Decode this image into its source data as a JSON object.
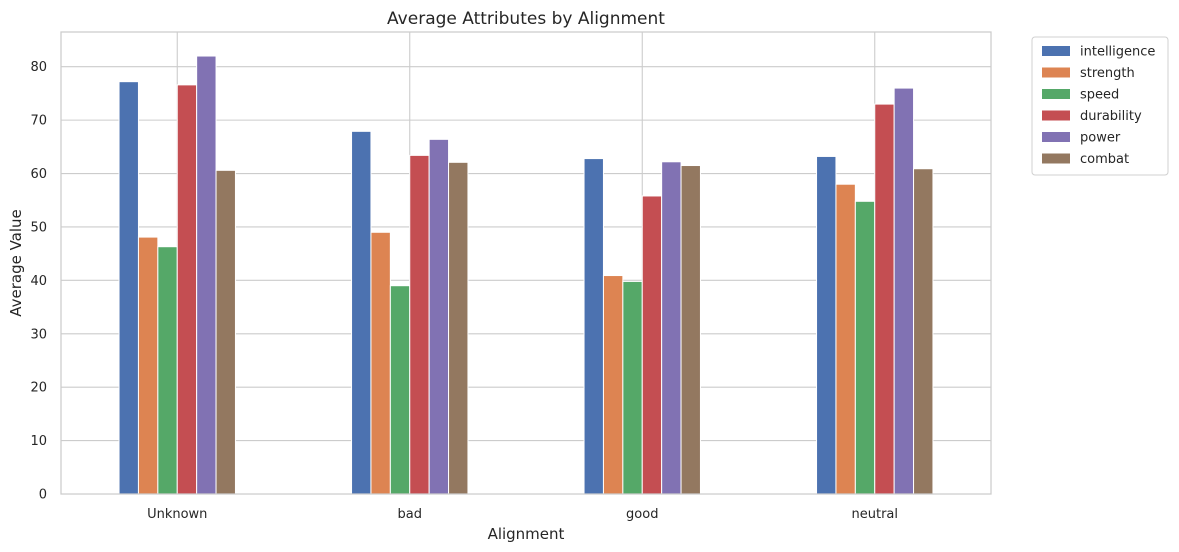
{
  "chart_data": {
    "type": "bar",
    "title": "Average Attributes by Alignment",
    "xlabel": "Alignment",
    "ylabel": "Average Value",
    "categories": [
      "Unknown",
      "bad",
      "good",
      "neutral"
    ],
    "ylim": [
      0,
      86.5
    ],
    "yticks": [
      "0",
      "10",
      "20",
      "30",
      "40",
      "50",
      "60",
      "70",
      "80"
    ],
    "grid": true,
    "legend_position": "outside-top-right",
    "series": [
      {
        "name": "intelligence",
        "color": "#4c72b0",
        "values": [
          77.2,
          67.9,
          62.8,
          63.2
        ]
      },
      {
        "name": "strength",
        "color": "#dd8452",
        "values": [
          48.1,
          49.0,
          40.9,
          58.0
        ]
      },
      {
        "name": "speed",
        "color": "#55a868",
        "values": [
          46.3,
          39.0,
          39.8,
          54.8
        ]
      },
      {
        "name": "durability",
        "color": "#c44e52",
        "values": [
          76.6,
          63.4,
          55.8,
          73.0
        ]
      },
      {
        "name": "power",
        "color": "#8172b3",
        "values": [
          82.0,
          66.4,
          62.2,
          76.0
        ]
      },
      {
        "name": "combat",
        "color": "#937860",
        "values": [
          60.6,
          62.1,
          61.5,
          60.9
        ]
      }
    ]
  }
}
